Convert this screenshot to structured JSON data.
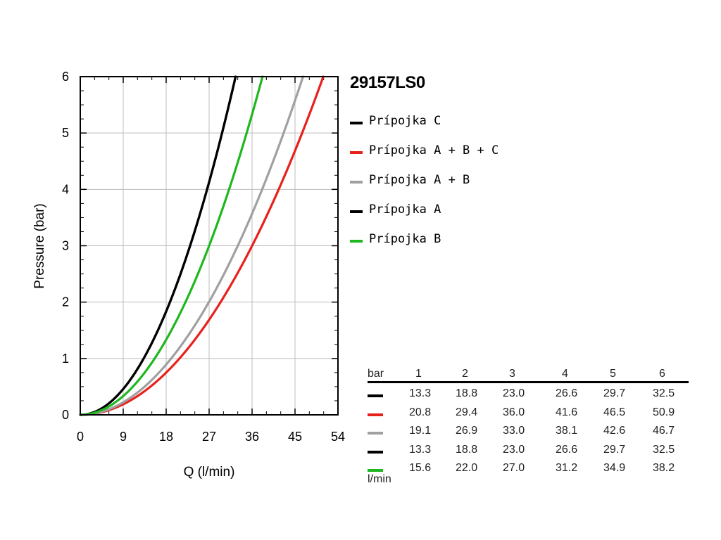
{
  "title": "29157LS0",
  "chart_data": {
    "type": "line",
    "xlabel": "Q (l/min)",
    "ylabel": "Pressure (bar)",
    "xlim": [
      0,
      54
    ],
    "ylim": [
      0,
      6
    ],
    "xticks": [
      "0",
      "9",
      "18",
      "27",
      "36",
      "45",
      "54"
    ],
    "yticks": [
      "0",
      "1",
      "2",
      "3",
      "4",
      "5",
      "6"
    ],
    "grid": true,
    "legend_position": "right",
    "pressures": [
      1,
      2,
      3,
      4,
      5,
      6
    ],
    "series": [
      {
        "name": "Prípojka C",
        "color": "#000000",
        "flows": [
          13.3,
          18.8,
          23.0,
          26.6,
          29.7,
          32.5
        ]
      },
      {
        "name": "Prípojka A + B + C",
        "color": "#e8201c",
        "flows": [
          20.8,
          29.4,
          36.0,
          41.6,
          46.5,
          50.9
        ]
      },
      {
        "name": "Prípojka A + B",
        "color": "#a0a0a0",
        "flows": [
          19.1,
          26.9,
          33.0,
          38.1,
          42.6,
          46.7
        ]
      },
      {
        "name": "Prípojka A",
        "color": "#000000",
        "flows": [
          13.3,
          18.8,
          23.0,
          26.6,
          29.7,
          32.5
        ]
      },
      {
        "name": "Prípojka B",
        "color": "#1fb71f",
        "flows": [
          15.6,
          22.0,
          27.0,
          31.2,
          34.9,
          38.2
        ]
      }
    ]
  },
  "table": {
    "unit_top": "bar",
    "unit_bottom": "l/min",
    "headers": [
      "1",
      "2",
      "3",
      "4",
      "5",
      "6"
    ],
    "rows": [
      {
        "color": "#000000",
        "values": [
          "13.3",
          "18.8",
          "23.0",
          "26.6",
          "29.7",
          "32.5"
        ]
      },
      {
        "color": "#e8201c",
        "values": [
          "20.8",
          "29.4",
          "36.0",
          "41.6",
          "46.5",
          "50.9"
        ]
      },
      {
        "color": "#a0a0a0",
        "values": [
          "19.1",
          "26.9",
          "33.0",
          "38.1",
          "42.6",
          "46.7"
        ]
      },
      {
        "color": "#000000",
        "values": [
          "13.3",
          "18.8",
          "23.0",
          "26.6",
          "29.7",
          "32.5"
        ]
      },
      {
        "color": "#1fb71f",
        "values": [
          "15.6",
          "22.0",
          "27.0",
          "31.2",
          "34.9",
          "38.2"
        ]
      }
    ]
  }
}
